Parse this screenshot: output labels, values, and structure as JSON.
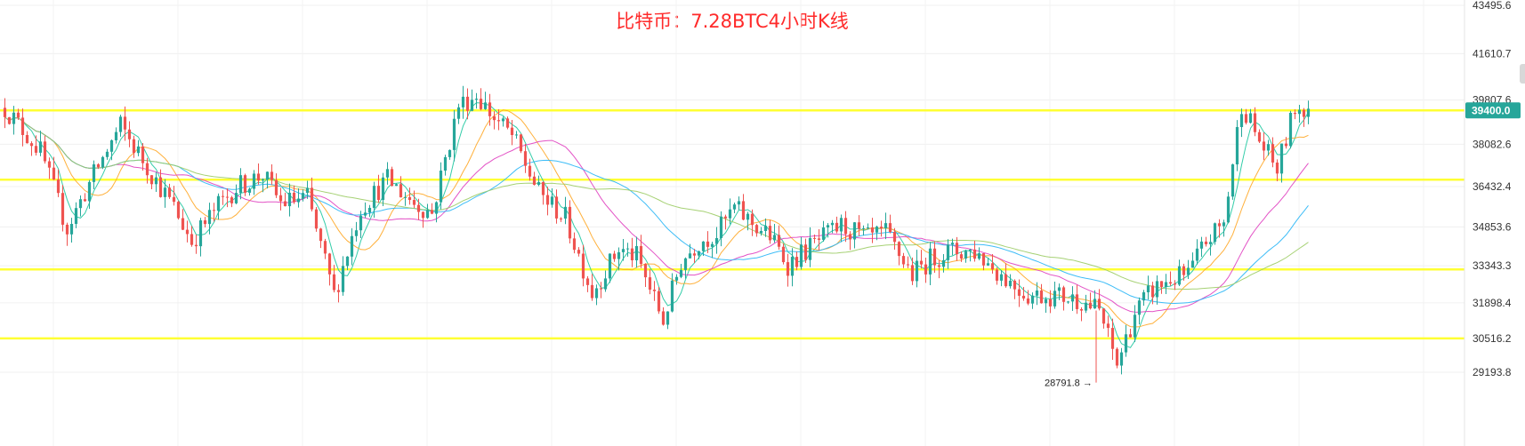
{
  "chart_data": {
    "type": "candlestick",
    "title": "比特币：7.28BTC4小时K线",
    "y_ticks": [
      43495.6,
      41610.7,
      39807.6,
      38082.6,
      36432.4,
      34853.6,
      33343.3,
      31898.4,
      30516.2,
      29193.8
    ],
    "ylim": [
      28300,
      43700
    ],
    "current_price": "39400.0",
    "low_annotation": "28791.8",
    "low_value": 28791.8,
    "support_resistance_levels": [
      39400,
      36700,
      33200,
      30516
    ],
    "colors": {
      "up": "#26a69a",
      "down": "#ef5350",
      "level_line": "#ffff33",
      "price_tag": "#26a69a",
      "title": "#ff2a2a",
      "ma_short": "#1ec8a0",
      "ma_mid": "#ffa726",
      "ma_long1": "#e040c0",
      "ma_long2": "#29b6f6",
      "ma_long3": "#9ccc65"
    },
    "grid": true,
    "candle_anchors": [
      [
        0,
        39500
      ],
      [
        8,
        37800
      ],
      [
        14,
        34800
      ],
      [
        20,
        36900
      ],
      [
        26,
        38800
      ],
      [
        32,
        37200
      ],
      [
        38,
        35600
      ],
      [
        42,
        34300
      ],
      [
        48,
        35700
      ],
      [
        52,
        36400
      ],
      [
        58,
        36900
      ],
      [
        62,
        35800
      ],
      [
        68,
        36000
      ],
      [
        74,
        32200
      ],
      [
        80,
        35600
      ],
      [
        86,
        36700
      ],
      [
        92,
        35800
      ],
      [
        96,
        35400
      ],
      [
        102,
        39600
      ],
      [
        106,
        40000
      ],
      [
        110,
        39100
      ],
      [
        114,
        38400
      ],
      [
        120,
        36200
      ],
      [
        126,
        35200
      ],
      [
        132,
        32300
      ],
      [
        138,
        34000
      ],
      [
        142,
        33700
      ],
      [
        148,
        31200
      ],
      [
        152,
        33500
      ],
      [
        156,
        34300
      ],
      [
        160,
        34600
      ],
      [
        164,
        35600
      ],
      [
        168,
        35000
      ],
      [
        172,
        34500
      ],
      [
        176,
        33400
      ],
      [
        182,
        34200
      ],
      [
        188,
        34900
      ],
      [
        194,
        34400
      ],
      [
        198,
        34600
      ],
      [
        204,
        33000
      ],
      [
        208,
        33600
      ],
      [
        212,
        33900
      ],
      [
        218,
        33900
      ],
      [
        222,
        33300
      ],
      [
        226,
        32700
      ],
      [
        230,
        32200
      ],
      [
        236,
        32200
      ],
      [
        242,
        32000
      ],
      [
        246,
        31600
      ],
      [
        250,
        29500
      ],
      [
        254,
        31500
      ],
      [
        258,
        32400
      ],
      [
        262,
        32800
      ],
      [
        266,
        33000
      ],
      [
        270,
        34300
      ],
      [
        274,
        35000
      ],
      [
        278,
        39700
      ],
      [
        282,
        38200
      ],
      [
        286,
        37100
      ],
      [
        290,
        39500
      ],
      [
        293,
        39500
      ]
    ]
  }
}
